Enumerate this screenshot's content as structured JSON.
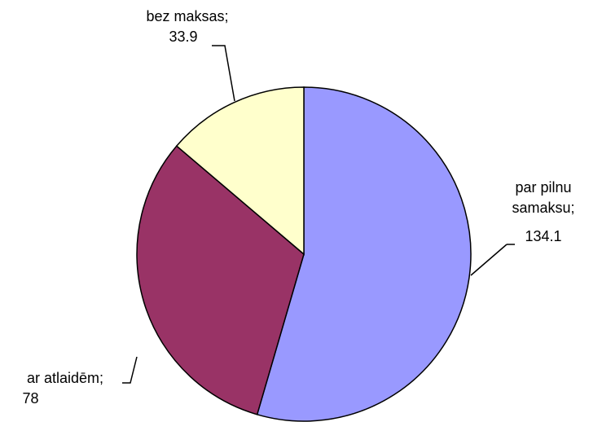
{
  "chart_data": {
    "type": "pie",
    "categories": [
      "par pilnu samaksu;",
      "ar atlaidēm;",
      "bez maksas;"
    ],
    "values": [
      134.1,
      78,
      33.9
    ],
    "colors": [
      "#9999ff",
      "#993366",
      "#ffffcc"
    ]
  }
}
